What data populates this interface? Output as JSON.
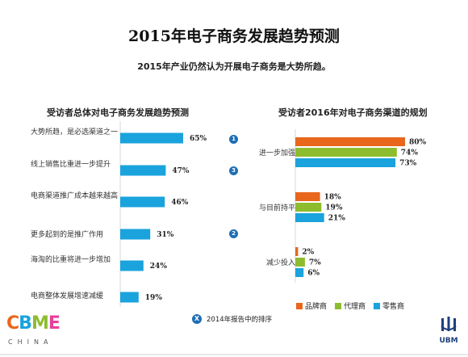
{
  "page": {
    "title": "2015年电子商务发展趋势预测",
    "subtitle": "2015年产业仍然认为开展电子商务是大势所趋。"
  },
  "colors": {
    "left_bar": "#1aa3dd",
    "brand": "#e8671c",
    "agent": "#8dbd2f",
    "retail": "#1aa3dd",
    "rank_badge": "#1f6eb5"
  },
  "chart_data": [
    {
      "type": "bar",
      "orientation": "horizontal",
      "title": "受访者总体对电子商务发展趋势预测",
      "categories": [
        "大势所趋，是必选渠道之一",
        "线上销售比重进一步提升",
        "电商渠道推广成本越来越高",
        "更多起到的是推广作用",
        "海淘的比重将进一步增加",
        "电商整体发展增速减缓"
      ],
      "values": [
        65,
        47,
        46,
        31,
        24,
        19
      ],
      "value_labels": [
        "65%",
        "47%",
        "46%",
        "31%",
        "24%",
        "19%"
      ],
      "rank_2014": [
        "1",
        "3",
        "",
        "2",
        "",
        ""
      ],
      "xlim": [
        0,
        100
      ],
      "grid": false
    },
    {
      "type": "bar",
      "orientation": "horizontal",
      "title": "受访者2016年对电子商务渠道的规划",
      "categories": [
        "进一步加强",
        "与目前持平",
        "减少投入"
      ],
      "series": [
        {
          "name": "品牌商",
          "values": [
            80,
            18,
            2
          ],
          "labels": [
            "80%",
            "18%",
            "2%"
          ]
        },
        {
          "name": "代理商",
          "values": [
            74,
            19,
            7
          ],
          "labels": [
            "74%",
            "19%",
            "7%"
          ]
        },
        {
          "name": "零售商",
          "values": [
            73,
            21,
            6
          ],
          "labels": [
            "73%",
            "21%",
            "6%"
          ]
        }
      ],
      "xlim": [
        0,
        100
      ],
      "legend": "bottom",
      "grid": false
    }
  ],
  "legend_note": {
    "badge": "X",
    "text": "2014年报告中的排序"
  },
  "logos": {
    "cbme_letters": [
      "C",
      "B",
      "M",
      "E"
    ],
    "cbme_colors": [
      "#e8671c",
      "#1aa3dd",
      "#8dbd2f",
      "#e8409a"
    ],
    "cbme_sub": "CHINA",
    "ubm": "UBM"
  }
}
